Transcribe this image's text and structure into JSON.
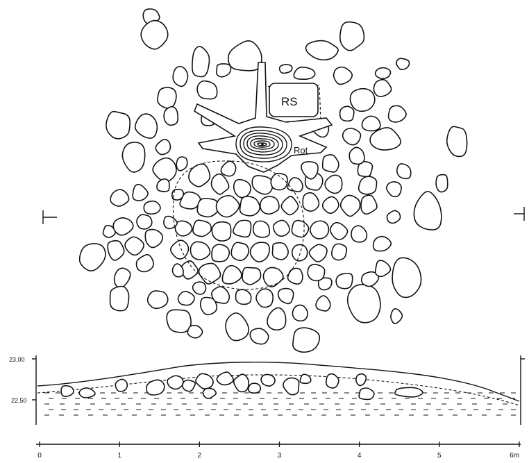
{
  "plan": {
    "label_rs": "RS",
    "label_rot": "Rot"
  },
  "section": {
    "elev_upper": "23,00",
    "elev_lower": "22,50"
  },
  "scale": {
    "ticks": [
      "0",
      "1",
      "2",
      "3",
      "4",
      "5",
      "6m"
    ]
  }
}
